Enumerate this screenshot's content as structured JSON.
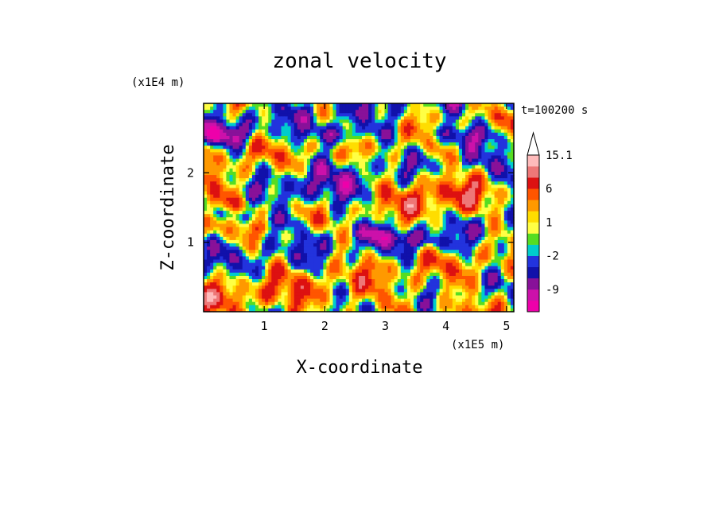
{
  "chart_data": {
    "type": "heatmap",
    "title": "zonal velocity",
    "xlabel": "X-coordinate",
    "ylabel": "Z-coordinate",
    "x_scale_label": "(x1E5 m)",
    "y_scale_label": "(x1E4 m)",
    "time_label": "t=100200 s",
    "xlim": [
      0,
      5.12
    ],
    "ylim": [
      0,
      3.0
    ],
    "x_ticks": [
      1,
      2,
      3,
      4,
      5
    ],
    "y_ticks": [
      1,
      2
    ],
    "colorbar": {
      "levels": [
        -15,
        -12,
        -9,
        -6,
        -4,
        -2,
        -1,
        0,
        1,
        2,
        4,
        6,
        9,
        12,
        15.1
      ],
      "colors": [
        "#ee00aa",
        "#cc11aa",
        "#881199",
        "#1111aa",
        "#2233dd",
        "#00cccc",
        "#55dd22",
        "#ffff44",
        "#ffdd00",
        "#ff9900",
        "#ff5500",
        "#dd1111",
        "#ee7777",
        "#ffbbbb"
      ],
      "tick_labels": [
        "15.1",
        "6",
        "1",
        "-2",
        "-9"
      ],
      "tick_values": [
        15.1,
        6,
        1,
        -2,
        -9
      ],
      "extend": "max"
    },
    "grid": false
  }
}
